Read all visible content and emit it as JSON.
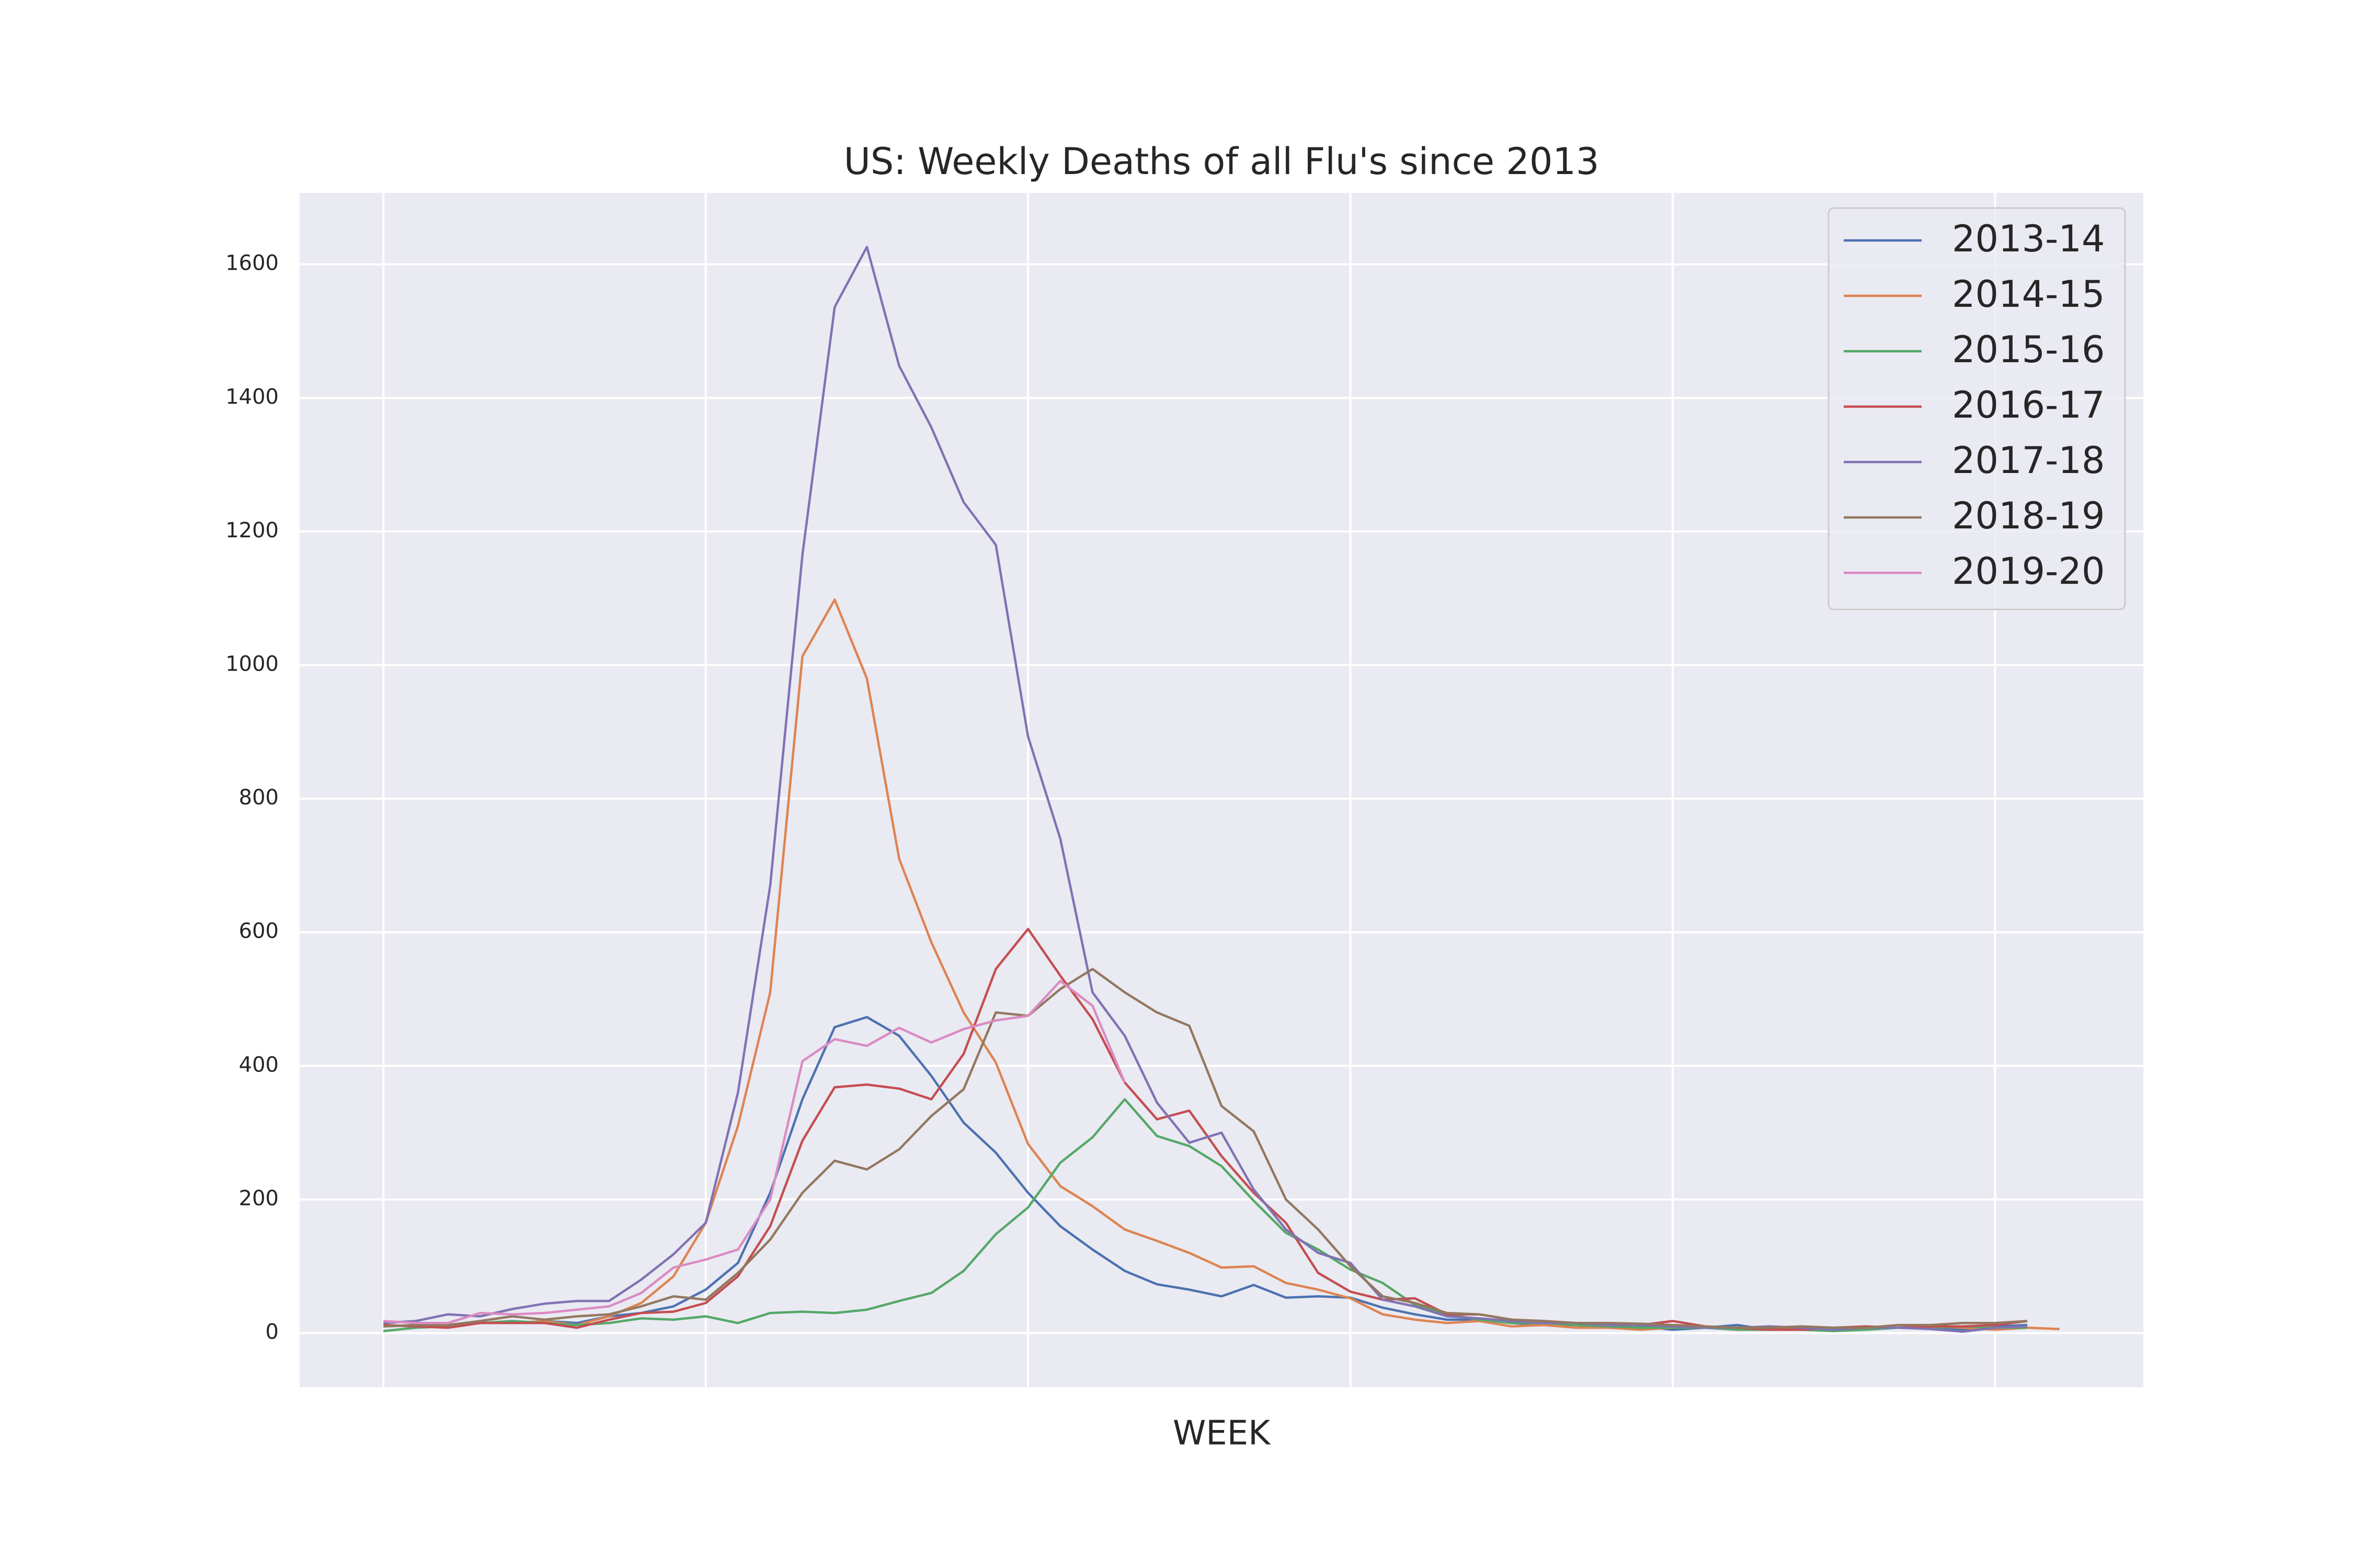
{
  "chart_data": {
    "type": "line",
    "title": "US: Weekly Deaths of all Flu's since 2013",
    "x_label": "WEEK",
    "x": [
      0,
      1,
      2,
      3,
      4,
      5,
      6,
      7,
      8,
      9,
      10,
      11,
      12,
      13,
      14,
      15,
      16,
      17,
      18,
      19,
      20,
      21,
      22,
      23,
      24,
      25,
      26,
      27,
      28,
      29,
      30,
      31,
      32,
      33,
      34,
      35,
      36,
      37,
      38,
      39,
      40,
      41,
      42,
      43,
      44,
      45,
      46,
      47,
      48,
      49,
      50,
      51,
      52
    ],
    "xlim": [
      -2.6,
      54.6
    ],
    "xticks": [
      0,
      10,
      20,
      30,
      40,
      50
    ],
    "ylim": [
      -81,
      1707
    ],
    "yticks": [
      0,
      200,
      400,
      600,
      800,
      1000,
      1200,
      1400,
      1600
    ],
    "grid": true,
    "legend": "upper right",
    "series": [
      {
        "name": "2013-14",
        "color": "#4c72b0",
        "values": [
          12,
          10,
          12,
          15,
          15,
          18,
          15,
          25,
          30,
          40,
          65,
          105,
          210,
          350,
          458,
          473,
          445,
          385,
          315,
          270,
          210,
          160,
          125,
          93,
          73,
          65,
          55,
          72,
          53,
          55,
          53,
          38,
          28,
          20,
          20,
          15,
          12,
          12,
          8,
          10,
          5,
          8,
          12,
          5,
          6,
          8,
          8,
          8,
          8,
          5,
          10,
          12,
          null
        ]
      },
      {
        "name": "2014-15",
        "color": "#dd8452",
        "values": [
          10,
          12,
          10,
          15,
          15,
          18,
          12,
          25,
          45,
          85,
          165,
          310,
          510,
          1013,
          1098,
          980,
          710,
          585,
          480,
          405,
          283,
          220,
          190,
          155,
          138,
          120,
          98,
          100,
          75,
          65,
          52,
          28,
          20,
          15,
          18,
          10,
          12,
          8,
          8,
          5,
          8,
          8,
          5,
          5,
          6,
          5,
          8,
          8,
          10,
          8,
          5,
          8,
          6
        ]
      },
      {
        "name": "2015-16",
        "color": "#55a868",
        "values": [
          3,
          8,
          10,
          15,
          18,
          15,
          12,
          15,
          22,
          20,
          25,
          15,
          30,
          32,
          30,
          35,
          48,
          60,
          93,
          148,
          188,
          255,
          293,
          350,
          295,
          280,
          250,
          198,
          150,
          125,
          95,
          75,
          42,
          28,
          20,
          15,
          15,
          12,
          10,
          8,
          8,
          8,
          5,
          5,
          5,
          3,
          5,
          8,
          8,
          10,
          8,
          8,
          null
        ]
      },
      {
        "name": "2016-17",
        "color": "#c44e52",
        "values": [
          12,
          10,
          8,
          15,
          15,
          15,
          8,
          20,
          30,
          32,
          45,
          85,
          160,
          288,
          368,
          372,
          366,
          350,
          418,
          545,
          605,
          535,
          470,
          375,
          320,
          333,
          265,
          210,
          165,
          90,
          62,
          50,
          52,
          28,
          28,
          20,
          18,
          15,
          12,
          12,
          18,
          10,
          8,
          5,
          5,
          8,
          10,
          8,
          10,
          10,
          12,
          18,
          null
        ]
      },
      {
        "name": "2017-18",
        "color": "#8172b3",
        "values": [
          15,
          18,
          28,
          25,
          36,
          44,
          48,
          48,
          80,
          118,
          165,
          360,
          670,
          1165,
          1536,
          1626,
          1448,
          1356,
          1244,
          1180,
          893,
          740,
          510,
          445,
          345,
          285,
          300,
          215,
          155,
          120,
          105,
          50,
          40,
          25,
          22,
          18,
          15,
          15,
          12,
          12,
          10,
          8,
          8,
          10,
          8,
          5,
          8,
          8,
          6,
          2,
          8,
          10,
          null
        ]
      },
      {
        "name": "2018-19",
        "color": "#937860",
        "values": [
          10,
          12,
          12,
          18,
          25,
          20,
          25,
          28,
          40,
          55,
          50,
          90,
          140,
          210,
          258,
          245,
          275,
          325,
          365,
          480,
          475,
          515,
          545,
          510,
          480,
          460,
          340,
          302,
          200,
          155,
          100,
          55,
          45,
          30,
          28,
          20,
          18,
          15,
          15,
          14,
          12,
          10,
          8,
          8,
          10,
          8,
          8,
          12,
          12,
          15,
          15,
          18,
          null
        ]
      },
      {
        "name": "2019-20",
        "color": "#da8bc3",
        "values": [
          18,
          15,
          15,
          30,
          28,
          30,
          35,
          40,
          60,
          98,
          110,
          125,
          200,
          407,
          440,
          430,
          457,
          435,
          455,
          468,
          475,
          527,
          490,
          375,
          null,
          null,
          null,
          null,
          null,
          null,
          null,
          null,
          null,
          null,
          null,
          null,
          null,
          null,
          null,
          null,
          null,
          null,
          null,
          null,
          null,
          null,
          null,
          null,
          null,
          null,
          null,
          null,
          null
        ]
      }
    ]
  }
}
